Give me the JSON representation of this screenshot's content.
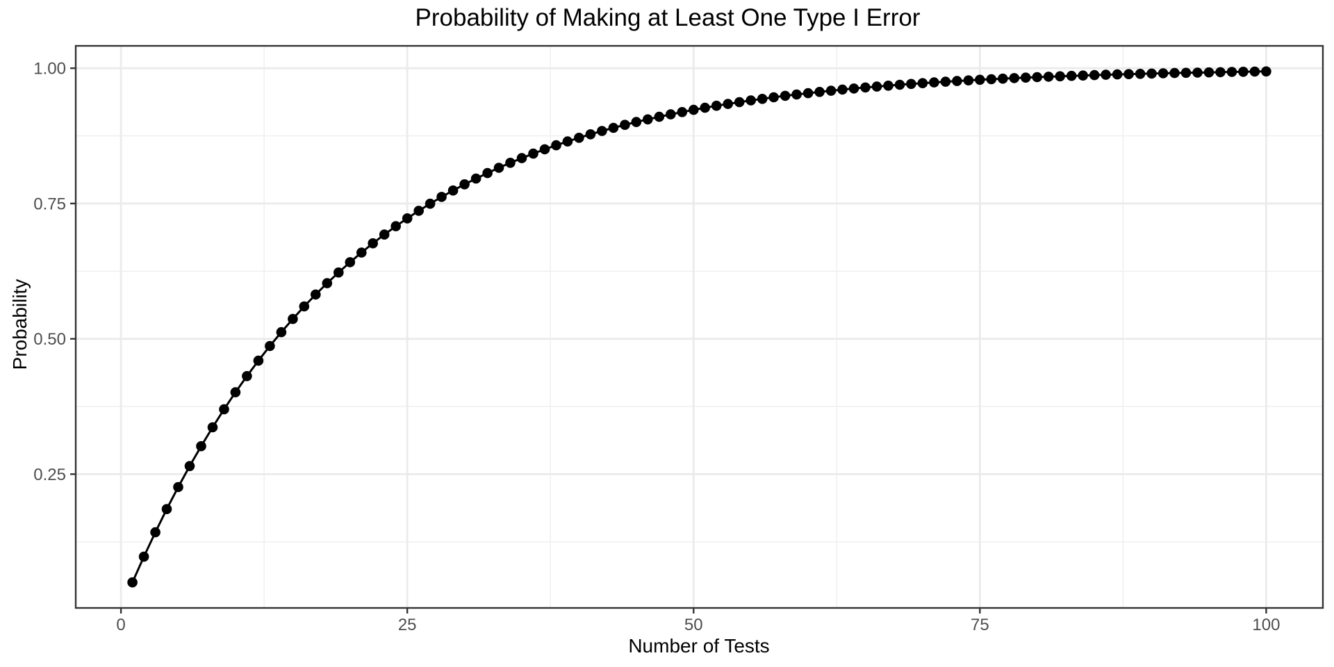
{
  "chart_data": {
    "type": "line",
    "title": "Probability of Making at Least One Type I Error",
    "xlabel": "Number of Tests",
    "ylabel": "Probability",
    "x": [
      1,
      2,
      3,
      4,
      5,
      6,
      7,
      8,
      9,
      10,
      11,
      12,
      13,
      14,
      15,
      16,
      17,
      18,
      19,
      20,
      21,
      22,
      23,
      24,
      25,
      26,
      27,
      28,
      29,
      30,
      31,
      32,
      33,
      34,
      35,
      36,
      37,
      38,
      39,
      40,
      41,
      42,
      43,
      44,
      45,
      46,
      47,
      48,
      49,
      50,
      51,
      52,
      53,
      54,
      55,
      56,
      57,
      58,
      59,
      60,
      61,
      62,
      63,
      64,
      65,
      66,
      67,
      68,
      69,
      70,
      71,
      72,
      73,
      74,
      75,
      76,
      77,
      78,
      79,
      80,
      81,
      82,
      83,
      84,
      85,
      86,
      87,
      88,
      89,
      90,
      91,
      92,
      93,
      94,
      95,
      96,
      97,
      98,
      99,
      100
    ],
    "y": [
      0.05,
      0.0975,
      0.1426,
      0.1855,
      0.2262,
      0.2649,
      0.3017,
      0.3366,
      0.3698,
      0.4013,
      0.4312,
      0.4596,
      0.4867,
      0.5123,
      0.5367,
      0.5599,
      0.5819,
      0.6028,
      0.6226,
      0.6415,
      0.6594,
      0.6765,
      0.6926,
      0.708,
      0.7226,
      0.7365,
      0.7497,
      0.7622,
      0.7741,
      0.7854,
      0.7961,
      0.8063,
      0.816,
      0.8252,
      0.8339,
      0.8422,
      0.8501,
      0.8576,
      0.8647,
      0.8715,
      0.8779,
      0.884,
      0.8898,
      0.8953,
      0.9006,
      0.9055,
      0.9103,
      0.9147,
      0.919,
      0.9231,
      0.9269,
      0.9306,
      0.934,
      0.9373,
      0.9405,
      0.9434,
      0.9463,
      0.949,
      0.9515,
      0.9539,
      0.9562,
      0.9584,
      0.9605,
      0.9625,
      0.9644,
      0.9661,
      0.9678,
      0.9694,
      0.971,
      0.9724,
      0.9738,
      0.9751,
      0.9764,
      0.9775,
      0.9787,
      0.9797,
      0.9807,
      0.9817,
      0.9826,
      0.9835,
      0.9843,
      0.9851,
      0.9858,
      0.9865,
      0.9872,
      0.9879,
      0.9885,
      0.989,
      0.9896,
      0.9901,
      0.9906,
      0.9911,
      0.9915,
      0.9919,
      0.9923,
      0.9927,
      0.9931,
      0.9934,
      0.9938,
      0.9941
    ],
    "x_tick_values": [
      0,
      25,
      50,
      75,
      100
    ],
    "x_tick_labels": [
      "0",
      "25",
      "50",
      "75",
      "100"
    ],
    "y_tick_values": [
      0.25,
      0.5,
      0.75,
      1.0
    ],
    "y_tick_labels": [
      "0.25",
      "0.50",
      "0.75",
      "1.00"
    ],
    "x_minor_values": [
      12.5,
      37.5,
      62.5,
      87.5
    ],
    "y_minor_values": [
      0.125,
      0.375,
      0.625,
      0.875
    ],
    "xlim": [
      -3.95,
      104.95
    ],
    "ylim": [
      0.0028,
      1.0413
    ],
    "grid": true,
    "legend": false,
    "colors": {
      "line": "#000000",
      "point": "#000000",
      "grid_major": "#ebebeb",
      "grid_minor": "#f0f0f0",
      "panel_border": "#333333",
      "tick_mark": "#333333",
      "tick_label": "#4d4d4d",
      "title": "#000000",
      "axis_title": "#000000",
      "background": "#ffffff"
    }
  }
}
